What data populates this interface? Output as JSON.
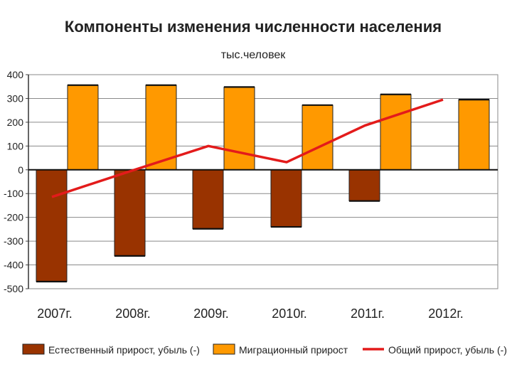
{
  "chart_data": {
    "type": "bar",
    "title": "Компоненты изменения численности населения",
    "subtitle": "тыс.человек",
    "categories": [
      "2007г.",
      "2008г.",
      "2009г.",
      "2010г.",
      "2011г.",
      "2012г."
    ],
    "series": [
      {
        "name": "Естественный прирост, убыль (-)",
        "kind": "bar",
        "color": "#993300",
        "values": [
          -470,
          -362,
          -248,
          -240,
          -131,
          0
        ]
      },
      {
        "name": "Миграционный прирост",
        "kind": "bar",
        "color": "#FF9900",
        "values": [
          356,
          356,
          348,
          272,
          317,
          295
        ]
      },
      {
        "name": "Общий прирост, убыль (-)",
        "kind": "line",
        "color": "#E31B1B",
        "values": [
          -114,
          -6,
          100,
          32,
          186,
          295
        ]
      }
    ],
    "yticks": [
      "400",
      "300",
      "200",
      "100",
      "0",
      "-100",
      "-200",
      "-300",
      "-400",
      "-500"
    ],
    "ylim": [
      -500,
      400
    ],
    "grid": true,
    "legend_position": "bottom"
  }
}
